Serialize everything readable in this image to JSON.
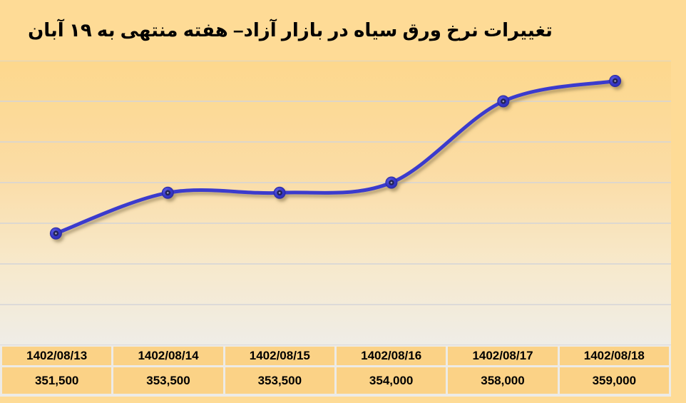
{
  "title": "تغییرات نرخ ورق سیاه در بازار آزاد– هفته منتهی به ۱۹ آبان",
  "colors": {
    "canvas_bg": "#FEDB96",
    "plot_gradient_top": "#FDD88D",
    "plot_gradient_bottom": "#EFEDE7",
    "gridline": "#D4D4D8",
    "line": "#3A3ACD",
    "marker_outer": "#3737C9",
    "marker_inner": "#22225A",
    "marker_highlight": "#A2A2B8",
    "shadow": "#6E5C38",
    "table_cell_bg": "#FBD286",
    "table_border_bg": "#EDEBE6",
    "text": "#000000"
  },
  "chart_data": {
    "type": "line",
    "title": "تغییرات نرخ ورق سیاه در بازار آزاد– هفته منتهی به ۱۹ آبان",
    "categories": [
      "1402/08/13",
      "1402/08/14",
      "1402/08/15",
      "1402/08/16",
      "1402/08/17",
      "1402/08/18"
    ],
    "values": [
      351500,
      353500,
      353500,
      354000,
      358000,
      359000
    ],
    "value_labels": [
      "351,500",
      "353,500",
      "353,500",
      "354,000",
      "358,000",
      "359,000"
    ],
    "xlabel": "",
    "ylabel": "",
    "ylim": [
      346000,
      360000
    ],
    "grid_step": 2000,
    "grid": "horizontal-only",
    "y_axis_labels_visible": false,
    "legend_position": "none",
    "smooth": true,
    "marker": "circle-3d"
  }
}
